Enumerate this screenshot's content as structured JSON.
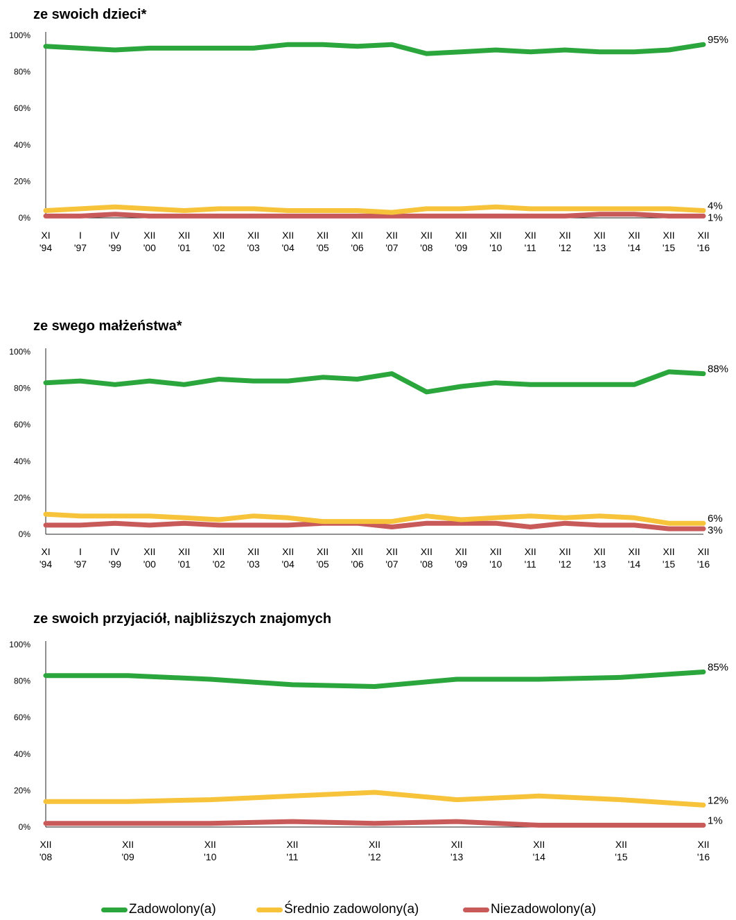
{
  "colors": {
    "zadowolony": "#2aa63c",
    "srednio": "#f6c33a",
    "niezadowolony": "#c95a5a"
  },
  "legend": [
    {
      "key": "zadowolony",
      "label": "Zadowolony(a)"
    },
    {
      "key": "srednio",
      "label": "Średnio zadowolony(a)"
    },
    {
      "key": "niezadowolony",
      "label": "Niezadowolony(a)"
    }
  ],
  "chart_data": [
    {
      "type": "line",
      "title": "ze swoich dzieci*",
      "ylim": [
        0,
        100
      ],
      "yticks": [
        "0%",
        "20%",
        "40%",
        "60%",
        "80%",
        "100%"
      ],
      "categories": [
        [
          "XI",
          "'94"
        ],
        [
          "I",
          "'97"
        ],
        [
          "IV",
          "'99"
        ],
        [
          "XII",
          "'00"
        ],
        [
          "XII",
          "'01"
        ],
        [
          "XII",
          "'02"
        ],
        [
          "XII",
          "'03"
        ],
        [
          "XII",
          "'04"
        ],
        [
          "XII",
          "'05"
        ],
        [
          "XII",
          "'06"
        ],
        [
          "XII",
          "'07"
        ],
        [
          "XII",
          "'08"
        ],
        [
          "XII",
          "'09"
        ],
        [
          "XII",
          "'10"
        ],
        [
          "XII",
          "'11"
        ],
        [
          "XII",
          "'12"
        ],
        [
          "XII",
          "'13"
        ],
        [
          "XII",
          "'14"
        ],
        [
          "XII",
          "'15"
        ],
        [
          "XII",
          "'16"
        ]
      ],
      "series": [
        {
          "key": "zadowolony",
          "values": [
            94,
            93,
            92,
            93,
            93,
            93,
            93,
            95,
            95,
            94,
            95,
            90,
            91,
            92,
            91,
            92,
            91,
            91,
            92,
            95
          ],
          "end_label": "95%"
        },
        {
          "key": "srednio",
          "values": [
            4,
            5,
            6,
            5,
            4,
            5,
            5,
            4,
            4,
            4,
            3,
            5,
            5,
            6,
            5,
            5,
            5,
            5,
            5,
            4
          ],
          "end_label": "4%"
        },
        {
          "key": "niezadowolony",
          "values": [
            1,
            1,
            2,
            1,
            1,
            1,
            1,
            1,
            1,
            1,
            1,
            1,
            1,
            1,
            1,
            1,
            2,
            2,
            1,
            1
          ],
          "end_label": "1%"
        }
      ]
    },
    {
      "type": "line",
      "title": "ze swego małżeństwa*",
      "ylim": [
        0,
        100
      ],
      "yticks": [
        "0%",
        "20%",
        "40%",
        "60%",
        "80%",
        "100%"
      ],
      "categories": [
        [
          "XI",
          "'94"
        ],
        [
          "I",
          "'97"
        ],
        [
          "IV",
          "'99"
        ],
        [
          "XII",
          "'00"
        ],
        [
          "XII",
          "'01"
        ],
        [
          "XII",
          "'02"
        ],
        [
          "XII",
          "'03"
        ],
        [
          "XII",
          "'04"
        ],
        [
          "XII",
          "'05"
        ],
        [
          "XII",
          "'06"
        ],
        [
          "XII",
          "'07"
        ],
        [
          "XII",
          "'08"
        ],
        [
          "XII",
          "'09"
        ],
        [
          "XII",
          "'10"
        ],
        [
          "XII",
          "'11"
        ],
        [
          "XII",
          "'12"
        ],
        [
          "XII",
          "'13"
        ],
        [
          "XII",
          "'14"
        ],
        [
          "XII",
          "'15"
        ],
        [
          "XII",
          "'16"
        ]
      ],
      "series": [
        {
          "key": "zadowolony",
          "values": [
            83,
            84,
            82,
            84,
            82,
            85,
            84,
            84,
            86,
            85,
            88,
            78,
            81,
            83,
            82,
            82,
            82,
            82,
            89,
            88
          ],
          "end_label": "88%"
        },
        {
          "key": "srednio",
          "values": [
            11,
            10,
            10,
            10,
            9,
            8,
            10,
            9,
            7,
            7,
            7,
            10,
            8,
            9,
            10,
            9,
            10,
            9,
            6,
            6
          ],
          "end_label": "6%"
        },
        {
          "key": "niezadowolony",
          "values": [
            5,
            5,
            6,
            5,
            6,
            5,
            5,
            5,
            6,
            6,
            4,
            6,
            6,
            6,
            4,
            6,
            5,
            5,
            3,
            3
          ],
          "end_label": "3%"
        }
      ]
    },
    {
      "type": "line",
      "title": "ze swoich przyjaciół, najbliższych znajomych",
      "ylim": [
        0,
        100
      ],
      "yticks": [
        "0%",
        "20%",
        "40%",
        "60%",
        "80%",
        "100%"
      ],
      "categories": [
        [
          "XII",
          "'08"
        ],
        [
          "XII",
          "'09"
        ],
        [
          "XII",
          "'10"
        ],
        [
          "XII",
          "'11"
        ],
        [
          "XII",
          "'12"
        ],
        [
          "XII",
          "'13"
        ],
        [
          "XII",
          "'14"
        ],
        [
          "XII",
          "'15"
        ],
        [
          "XII",
          "'16"
        ]
      ],
      "series": [
        {
          "key": "zadowolony",
          "values": [
            83,
            83,
            81,
            78,
            77,
            81,
            81,
            82,
            85
          ],
          "end_label": "85%"
        },
        {
          "key": "srednio",
          "values": [
            14,
            14,
            15,
            17,
            19,
            15,
            17,
            15,
            12
          ],
          "end_label": "12%"
        },
        {
          "key": "niezadowolony",
          "values": [
            2,
            2,
            2,
            3,
            2,
            3,
            1,
            1,
            1
          ],
          "end_label": "1%"
        }
      ]
    }
  ]
}
